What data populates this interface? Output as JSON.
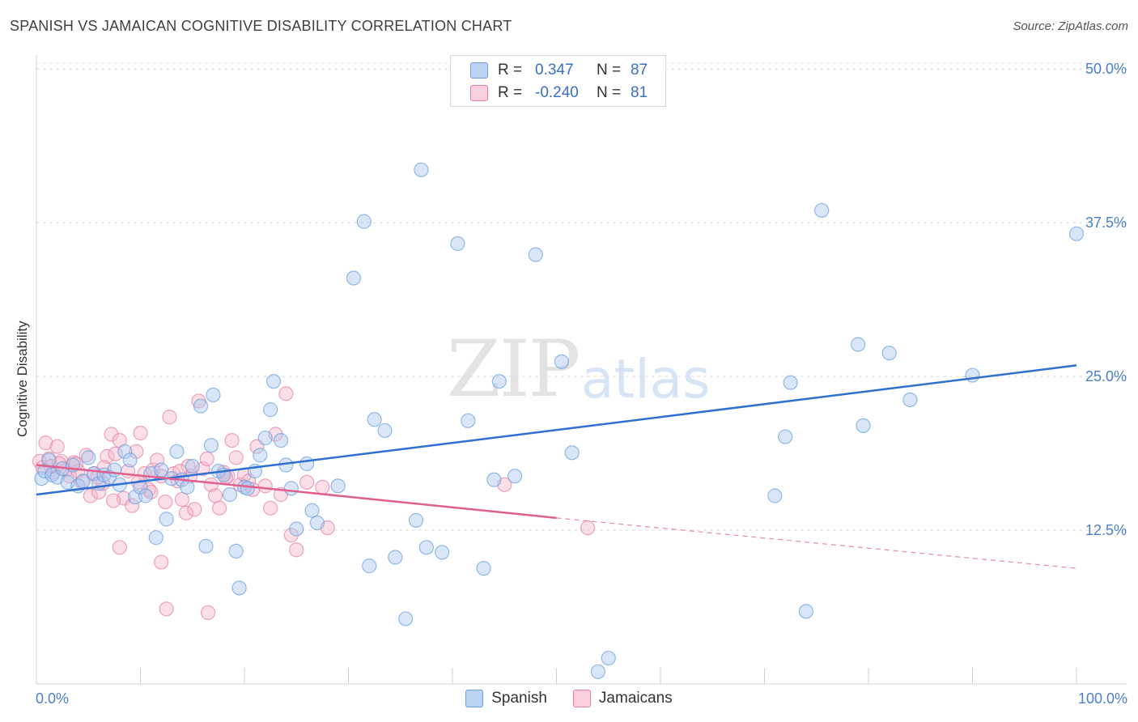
{
  "header": {
    "title": "SPANISH VS JAMAICAN COGNITIVE DISABILITY CORRELATION CHART",
    "source": "Source: ZipAtlas.com"
  },
  "watermark": {
    "zip": "ZIP",
    "atlas": "atlas"
  },
  "legend": {
    "rows": [
      {
        "r_label": "R =",
        "r_value": "0.347",
        "n_label": "N =",
        "n_value": "87",
        "color": "#a9c8f0"
      },
      {
        "r_label": "R =",
        "r_value": "-0.240",
        "n_label": "N =",
        "n_value": "81",
        "color": "#f5b8cb"
      }
    ]
  },
  "bottom_legend": [
    {
      "label": "Spanish",
      "color": "#a9c8f0"
    },
    {
      "label": "Jamaicans",
      "color": "#f5b8cb"
    }
  ],
  "chart_data": {
    "type": "scatter",
    "title": "SPANISH VS JAMAICAN COGNITIVE DISABILITY CORRELATION CHART",
    "ylabel": "Cognitive Disability",
    "xlabel": "",
    "xlim": [
      0,
      100
    ],
    "ylim": [
      0,
      51
    ],
    "x_tick_labels": [
      "0.0%",
      "100.0%"
    ],
    "y_ticks": [
      12.5,
      25.0,
      37.5,
      50.0
    ],
    "y_tick_labels": [
      "12.5%",
      "25.0%",
      "37.5%",
      "50.0%"
    ],
    "grid": "horizontal dashed",
    "legend_position": "top-center",
    "series": [
      {
        "name": "Spanish",
        "color": "#6a9fe0",
        "fill": "#a9c8f0",
        "trend": {
          "x": [
            0,
            100
          ],
          "y": [
            15.4,
            25.9
          ],
          "style": "solid"
        },
        "points": [
          [
            0.5,
            16.7
          ],
          [
            0.8,
            17.3
          ],
          [
            1.2,
            18.2
          ],
          [
            1.5,
            17.0
          ],
          [
            2.0,
            16.8
          ],
          [
            2.5,
            17.5
          ],
          [
            3.0,
            16.4
          ],
          [
            3.5,
            17.8
          ],
          [
            4.0,
            16.1
          ],
          [
            4.5,
            16.5
          ],
          [
            5.0,
            18.4
          ],
          [
            5.5,
            17.1
          ],
          [
            6.0,
            16.3
          ],
          [
            6.5,
            17.0
          ],
          [
            7.0,
            16.8
          ],
          [
            7.5,
            17.4
          ],
          [
            8.0,
            16.2
          ],
          [
            8.5,
            18.9
          ],
          [
            9.0,
            18.2
          ],
          [
            9.5,
            15.2
          ],
          [
            10.0,
            16.0
          ],
          [
            10.5,
            15.3
          ],
          [
            11.0,
            17.1
          ],
          [
            11.5,
            11.9
          ],
          [
            12.0,
            17.4
          ],
          [
            12.5,
            13.4
          ],
          [
            13.0,
            16.7
          ],
          [
            13.5,
            18.9
          ],
          [
            14.0,
            16.6
          ],
          [
            14.5,
            16.0
          ],
          [
            15.0,
            17.7
          ],
          [
            15.8,
            22.6
          ],
          [
            16.3,
            11.2
          ],
          [
            16.8,
            19.4
          ],
          [
            17.0,
            23.5
          ],
          [
            17.5,
            17.3
          ],
          [
            18.0,
            17.0
          ],
          [
            18.6,
            15.4
          ],
          [
            19.2,
            10.8
          ],
          [
            20.0,
            16.0
          ],
          [
            19.5,
            7.8
          ],
          [
            20.3,
            15.9
          ],
          [
            21.0,
            17.3
          ],
          [
            21.5,
            18.6
          ],
          [
            22.0,
            20.0
          ],
          [
            22.5,
            22.3
          ],
          [
            22.8,
            24.6
          ],
          [
            23.5,
            19.8
          ],
          [
            24.0,
            17.8
          ],
          [
            24.5,
            15.9
          ],
          [
            25.0,
            12.6
          ],
          [
            26.0,
            17.9
          ],
          [
            26.5,
            14.1
          ],
          [
            27.0,
            13.1
          ],
          [
            29.0,
            16.1
          ],
          [
            30.5,
            33.0
          ],
          [
            31.5,
            37.6
          ],
          [
            32.0,
            9.6
          ],
          [
            32.5,
            21.5
          ],
          [
            33.5,
            20.6
          ],
          [
            34.5,
            10.3
          ],
          [
            35.5,
            5.3
          ],
          [
            36.5,
            13.3
          ],
          [
            37.0,
            41.8
          ],
          [
            37.5,
            11.1
          ],
          [
            39.0,
            10.7
          ],
          [
            40.5,
            35.8
          ],
          [
            41.5,
            21.4
          ],
          [
            43.0,
            9.4
          ],
          [
            44.0,
            16.6
          ],
          [
            44.5,
            24.6
          ],
          [
            46.0,
            16.9
          ],
          [
            48.0,
            34.9
          ],
          [
            50.5,
            26.2
          ],
          [
            51.5,
            18.8
          ],
          [
            55.0,
            2.1
          ],
          [
            54.0,
            1.0
          ],
          [
            71.0,
            15.3
          ],
          [
            72.0,
            20.1
          ],
          [
            72.5,
            24.5
          ],
          [
            74.0,
            5.9
          ],
          [
            75.5,
            38.5
          ],
          [
            79.0,
            27.6
          ],
          [
            79.5,
            21.0
          ],
          [
            82.0,
            26.9
          ],
          [
            84.0,
            23.1
          ],
          [
            90.0,
            25.1
          ],
          [
            100.0,
            36.6
          ]
        ]
      },
      {
        "name": "Jamaicans",
        "color": "#e87fa3",
        "fill": "#f5b8cb",
        "trend": {
          "x": [
            0,
            50,
            100
          ],
          "y": [
            17.8,
            13.5,
            9.4
          ],
          "style": "solid-then-dashed",
          "solid_until": 50
        },
        "points": [
          [
            0.3,
            18.1
          ],
          [
            0.6,
            17.6
          ],
          [
            0.9,
            19.6
          ],
          [
            1.2,
            18.3
          ],
          [
            1.6,
            17.2
          ],
          [
            2.0,
            19.3
          ],
          [
            2.4,
            18.1
          ],
          [
            2.8,
            17.4
          ],
          [
            3.2,
            16.9
          ],
          [
            3.6,
            18.0
          ],
          [
            4.0,
            17.3
          ],
          [
            4.4,
            16.4
          ],
          [
            4.8,
            18.6
          ],
          [
            5.2,
            15.3
          ],
          [
            5.6,
            17.1
          ],
          [
            6.0,
            15.6
          ],
          [
            6.4,
            16.3
          ],
          [
            6.8,
            18.5
          ],
          [
            7.2,
            20.3
          ],
          [
            7.6,
            18.7
          ],
          [
            8.0,
            19.8
          ],
          [
            8.4,
            15.1
          ],
          [
            8.8,
            17.3
          ],
          [
            9.2,
            14.5
          ],
          [
            9.6,
            18.9
          ],
          [
            10.0,
            20.4
          ],
          [
            10.4,
            17.1
          ],
          [
            10.8,
            15.8
          ],
          [
            11.2,
            17.4
          ],
          [
            11.6,
            18.2
          ],
          [
            12.0,
            16.9
          ],
          [
            12.4,
            14.8
          ],
          [
            12.8,
            21.7
          ],
          [
            13.2,
            17.1
          ],
          [
            13.6,
            16.5
          ],
          [
            14.0,
            15.0
          ],
          [
            14.4,
            13.9
          ],
          [
            14.8,
            16.9
          ],
          [
            15.2,
            14.2
          ],
          [
            15.6,
            23.0
          ],
          [
            16.0,
            17.5
          ],
          [
            16.4,
            18.3
          ],
          [
            16.8,
            16.2
          ],
          [
            17.2,
            15.3
          ],
          [
            17.6,
            14.3
          ],
          [
            18.0,
            17.2
          ],
          [
            18.4,
            16.9
          ],
          [
            18.8,
            19.8
          ],
          [
            19.2,
            18.4
          ],
          [
            19.6,
            16.2
          ],
          [
            20.0,
            17.0
          ],
          [
            20.4,
            16.5
          ],
          [
            20.8,
            15.8
          ],
          [
            21.2,
            19.3
          ],
          [
            22.0,
            16.1
          ],
          [
            22.5,
            14.3
          ],
          [
            23.0,
            20.3
          ],
          [
            23.5,
            15.4
          ],
          [
            24.0,
            23.6
          ],
          [
            24.5,
            12.1
          ],
          [
            25.0,
            10.9
          ],
          [
            26.0,
            16.4
          ],
          [
            27.5,
            16.0
          ],
          [
            28.0,
            12.7
          ],
          [
            12.0,
            9.9
          ],
          [
            12.5,
            6.1
          ],
          [
            16.5,
            5.8
          ],
          [
            8.0,
            11.1
          ],
          [
            45.0,
            16.2
          ],
          [
            53.0,
            12.7
          ],
          [
            6.5,
            17.6
          ],
          [
            3.8,
            17.9
          ],
          [
            1.4,
            17.7
          ],
          [
            9.8,
            16.4
          ],
          [
            14.6,
            17.7
          ],
          [
            18.2,
            16.8
          ],
          [
            11.0,
            15.6
          ],
          [
            13.8,
            17.3
          ],
          [
            7.4,
            14.9
          ],
          [
            5.9,
            16.8
          ],
          [
            2.2,
            17.9
          ]
        ]
      }
    ]
  },
  "axes": {
    "x_left_label": "0.0%",
    "x_right_label": "100.0%",
    "y_axis_label": "Cognitive Disability"
  }
}
